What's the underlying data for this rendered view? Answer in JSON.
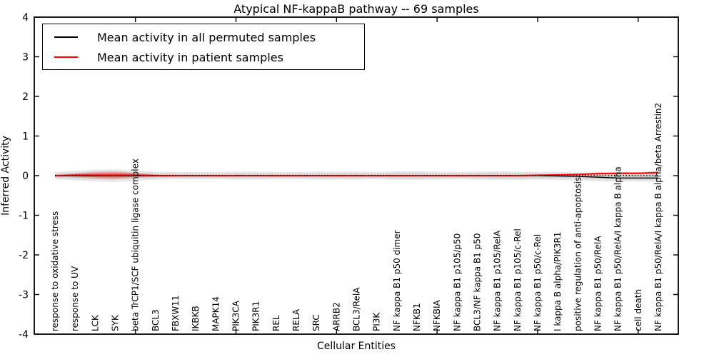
{
  "figure": {
    "title": "Atypical NF-kappaB pathway -- 69 samples",
    "xlabel": "Cellular Entities",
    "ylabel": "Inferred Activity"
  },
  "legend": {
    "items": [
      {
        "label": "Mean activity in all permuted samples",
        "color": "#000000"
      },
      {
        "label": "Mean activity in patient samples",
        "color": "#ff0000"
      }
    ]
  },
  "axes": {
    "ylim": [
      -4,
      4
    ],
    "yticks": [
      -4,
      -3,
      -2,
      -1,
      0,
      1,
      2,
      3,
      4
    ],
    "xticks_major": [
      5,
      10,
      15,
      20,
      25,
      30
    ],
    "spine_color": "#000000"
  },
  "colors": {
    "permuted_line": "#000000",
    "patient_line": "#ff0000",
    "permuted_band_outer": "#e7e7e7",
    "permuted_band_inner": "#d3d3d3",
    "patient_band_outer": "rgba(255,0,0,0.16)",
    "patient_band_inner": "rgba(255,0,0,0.38)",
    "zero_line": "#000000"
  },
  "chart_data": {
    "type": "line",
    "title": "Atypical NF-kappaB pathway -- 69 samples",
    "xlabel": "Cellular Entities",
    "ylabel": "Inferred Activity",
    "ylim": [
      -4,
      4
    ],
    "grid": false,
    "legend_position": "upper left",
    "categories": [
      "response to oxidative stress",
      "response to UV",
      "LCK",
      "SYK",
      "beta TrCP1/SCF ubiquitin ligase complex",
      "BCL3",
      "FBXW11",
      "IKBKB",
      "MAPK14",
      "PIK3CA",
      "PIK3R1",
      "REL",
      "RELA",
      "SRC",
      "ARRB2",
      "BCL3/RelA",
      "PI3K",
      "NF kappa B1 p50 dimer",
      "NFKB1",
      "NFKBIA",
      "NF kappa B1 p105/p50",
      "BCL3/NF kappa B1 p50",
      "NF kappa B1 p105/RelA",
      "NF kappa B1 p105/c-Rel",
      "NF kappa B1 p50/c-Rel",
      "I kappa B alpha/PIK3R1",
      "positive regulation of anti-apoptosis",
      "NF kappa B1 p50/RelA",
      "NF kappa B1 p50/RelA/I kappa B alpha",
      "cell death",
      "NF kappa B1 p50/RelA/I kappa B alpha/beta Arrestin2"
    ],
    "series": [
      {
        "name": "Mean activity in all permuted samples",
        "color": "#000000",
        "values": [
          0,
          0,
          0,
          0,
          0,
          0,
          0,
          0,
          0,
          0,
          0,
          0,
          0,
          0,
          0,
          0,
          0,
          0,
          0,
          0,
          0,
          0,
          0,
          0,
          0,
          -0.01,
          -0.02,
          -0.04,
          -0.06,
          -0.06,
          -0.06
        ]
      },
      {
        "name": "Mean activity in patient samples",
        "color": "#ff0000",
        "values": [
          0,
          0.01,
          0.01,
          0.01,
          0.01,
          0,
          0,
          0,
          0,
          0,
          0,
          0,
          0,
          0,
          0,
          0,
          0,
          0,
          0,
          0,
          0,
          0,
          0,
          0,
          0.01,
          0.02,
          0.03,
          0.05,
          0.06,
          0.06,
          0.08
        ]
      }
    ],
    "bands": [
      {
        "name": "permuted-range-outer",
        "color_key": "permuted_band_outer",
        "upper": [
          0.09,
          0.12,
          0.15,
          0.16,
          0.13,
          0.1,
          0.09,
          0.09,
          0.09,
          0.1,
          0.1,
          0.09,
          0.09,
          0.1,
          0.1,
          0.1,
          0.09,
          0.11,
          0.11,
          0.1,
          0.09,
          0.1,
          0.11,
          0.1,
          0.09,
          0.09,
          0.08,
          0.08,
          0.08,
          0.08,
          0.09
        ],
        "lower": [
          -0.09,
          -0.12,
          -0.15,
          -0.16,
          -0.13,
          -0.1,
          -0.09,
          -0.09,
          -0.09,
          -0.1,
          -0.1,
          -0.09,
          -0.09,
          -0.1,
          -0.1,
          -0.1,
          -0.09,
          -0.11,
          -0.11,
          -0.1,
          -0.09,
          -0.1,
          -0.11,
          -0.11,
          -0.1,
          -0.11,
          -0.12,
          -0.14,
          -0.15,
          -0.15,
          -0.16
        ]
      },
      {
        "name": "permuted-range-inner",
        "color_key": "permuted_band_inner",
        "upper": [
          0.05,
          0.07,
          0.09,
          0.1,
          0.08,
          0.06,
          0.05,
          0.05,
          0.05,
          0.06,
          0.06,
          0.05,
          0.05,
          0.06,
          0.06,
          0.06,
          0.05,
          0.07,
          0.07,
          0.06,
          0.05,
          0.06,
          0.07,
          0.06,
          0.05,
          0.05,
          0.05,
          0.04,
          0.04,
          0.04,
          0.05
        ],
        "lower": [
          -0.05,
          -0.07,
          -0.09,
          -0.1,
          -0.08,
          -0.06,
          -0.05,
          -0.05,
          -0.05,
          -0.06,
          -0.06,
          -0.05,
          -0.05,
          -0.06,
          -0.06,
          -0.06,
          -0.05,
          -0.07,
          -0.07,
          -0.06,
          -0.05,
          -0.06,
          -0.07,
          -0.07,
          -0.06,
          -0.06,
          -0.07,
          -0.09,
          -0.1,
          -0.1,
          -0.11
        ]
      },
      {
        "name": "patient-range-outer",
        "color_key": "patient_band_outer",
        "upper": [
          0.02,
          0.06,
          0.1,
          0.11,
          0.07,
          0.03,
          0.02,
          0.01,
          0.01,
          0.01,
          0.01,
          0.01,
          0.01,
          0.01,
          0.01,
          0.01,
          0.01,
          0.02,
          0.01,
          0.01,
          0.01,
          0.01,
          0.02,
          0.02,
          0.03,
          0.04,
          0.05,
          0.08,
          0.09,
          0.09,
          0.11
        ],
        "lower": [
          -0.02,
          -0.04,
          -0.08,
          -0.09,
          -0.05,
          -0.03,
          -0.02,
          -0.01,
          -0.01,
          -0.01,
          -0.01,
          -0.01,
          -0.01,
          -0.01,
          -0.01,
          -0.01,
          -0.01,
          -0.02,
          -0.01,
          -0.01,
          -0.01,
          -0.01,
          -0.02,
          -0.02,
          -0.01,
          0.0,
          0.01,
          0.02,
          0.03,
          0.03,
          0.05
        ]
      },
      {
        "name": "patient-range-inner",
        "color_key": "patient_band_inner",
        "upper": [
          0.01,
          0.04,
          0.06,
          0.07,
          0.05,
          0.02,
          0.01,
          0.005,
          0.005,
          0.005,
          0.005,
          0.005,
          0.005,
          0.005,
          0.005,
          0.005,
          0.005,
          0.01,
          0.005,
          0.005,
          0.005,
          0.005,
          0.01,
          0.01,
          0.02,
          0.03,
          0.04,
          0.07,
          0.08,
          0.08,
          0.1
        ],
        "lower": [
          -0.01,
          -0.02,
          -0.04,
          -0.05,
          -0.03,
          -0.02,
          -0.01,
          -0.005,
          -0.005,
          -0.005,
          -0.005,
          -0.005,
          -0.005,
          -0.005,
          -0.005,
          -0.005,
          -0.005,
          -0.01,
          -0.005,
          -0.005,
          -0.005,
          -0.005,
          -0.01,
          -0.01,
          0.0,
          0.01,
          0.02,
          0.03,
          0.04,
          0.04,
          0.06
        ]
      }
    ],
    "zero_line": {
      "y": 0,
      "style": "dotted",
      "color": "#000000"
    }
  }
}
